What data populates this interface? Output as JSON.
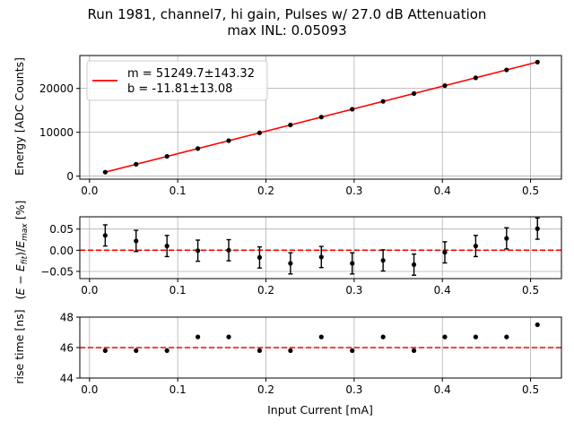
{
  "title": {
    "line1": "Run 1981, channel7, hi gain, Pulses w/ 27.0 dB Attenuation",
    "line2": "max INL: 0.05093"
  },
  "chart_data": [
    {
      "type": "scatter",
      "name": "energy-fit",
      "xlabel": "",
      "ylabel": "Energy [ADC Counts]",
      "xlim": [
        -0.011,
        0.535
      ],
      "ylim": [
        -700,
        27500
      ],
      "grid": true,
      "x": [
        0.0178,
        0.0528,
        0.0878,
        0.1228,
        0.1578,
        0.1928,
        0.2278,
        0.2628,
        0.2978,
        0.3328,
        0.3678,
        0.4028,
        0.4378,
        0.4728,
        0.5078
      ],
      "y": [
        900,
        2700,
        4500,
        6280,
        8080,
        9870,
        11660,
        13460,
        15250,
        17040,
        18840,
        20630,
        22420,
        24220,
        26010
      ],
      "xticks": [
        "0.0",
        "0.1",
        "0.2",
        "0.3",
        "0.4",
        "0.5"
      ],
      "yticks": [
        "0",
        "10000",
        "20000"
      ],
      "fit_line": {
        "slope": 51249.7,
        "intercept": -11.81,
        "color": "#ff0000"
      },
      "marker_color": "#000000",
      "legend": {
        "position": "top-left",
        "m_label": "m = 51249.7±143.32",
        "b_label": "b = -11.81±13.08"
      }
    },
    {
      "type": "scatter",
      "name": "residuals",
      "xlabel": "",
      "ylabel": "(E − E_fit)/E_max [%]",
      "xlim": [
        -0.011,
        0.535
      ],
      "ylim": [
        -0.067,
        0.079
      ],
      "grid": true,
      "x": [
        0.0178,
        0.0528,
        0.0878,
        0.1228,
        0.1578,
        0.1928,
        0.2278,
        0.2628,
        0.2978,
        0.3328,
        0.3678,
        0.4028,
        0.4378,
        0.4728,
        0.5078
      ],
      "y": [
        0.035,
        0.022,
        0.01,
        -0.001,
        0.0,
        -0.017,
        -0.031,
        -0.016,
        -0.031,
        -0.024,
        -0.034,
        -0.005,
        0.01,
        0.028,
        0.051
      ],
      "yerr": 0.025,
      "xticks": [
        "0.0",
        "0.1",
        "0.2",
        "0.3",
        "0.4",
        "0.5"
      ],
      "yticks": [
        "0.05",
        "0.00",
        "−0.05"
      ],
      "reference_line": {
        "y": 0.0,
        "color": "#ff0000",
        "style": "dashed"
      }
    },
    {
      "type": "scatter",
      "name": "rise-time",
      "xlabel": "Input Current [mA]",
      "ylabel": "rise time [ns]",
      "xlim": [
        -0.011,
        0.535
      ],
      "ylim": [
        44,
        48
      ],
      "grid": true,
      "x": [
        0.0178,
        0.0528,
        0.0878,
        0.1228,
        0.1578,
        0.1928,
        0.2278,
        0.2628,
        0.2978,
        0.3328,
        0.3678,
        0.4028,
        0.4378,
        0.4728,
        0.5078
      ],
      "y": [
        45.8,
        45.8,
        45.8,
        46.7,
        46.7,
        45.8,
        45.8,
        46.7,
        45.8,
        46.7,
        45.8,
        46.7,
        46.7,
        46.7,
        47.5
      ],
      "xticks": [
        "0.0",
        "0.1",
        "0.2",
        "0.3",
        "0.4",
        "0.5"
      ],
      "yticks": [
        "48",
        "46",
        "44"
      ],
      "reference_line": {
        "y": 46.0,
        "color": "#ff0000",
        "style": "dashed"
      }
    }
  ]
}
